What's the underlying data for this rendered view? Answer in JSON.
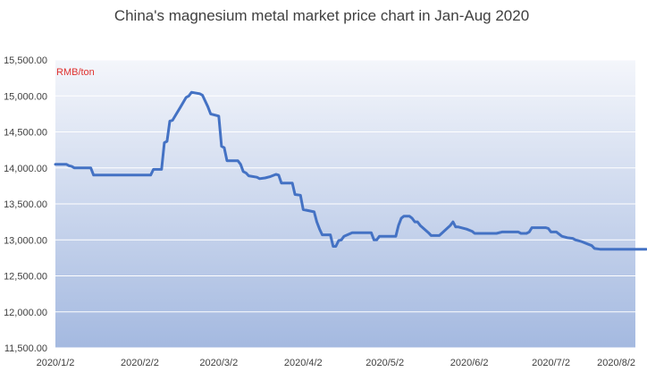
{
  "chart_data": {
    "type": "line",
    "title": "China's magnesium metal market price chart in Jan-Aug 2020",
    "unit_label": "RMB/ton",
    "xlabel": "",
    "ylabel": "",
    "ylim": [
      11500,
      15500
    ],
    "xlim": [
      "2020/1/2",
      "2020/8/2"
    ],
    "x_ticks": [
      "2020/1/2",
      "2020/2/2",
      "2020/3/2",
      "2020/4/2",
      "2020/5/2",
      "2020/6/2",
      "2020/7/2",
      "2020/8/2"
    ],
    "y_ticks": [
      11500,
      12000,
      12500,
      13000,
      13500,
      14000,
      14500,
      15000,
      15500
    ],
    "y_tick_labels": [
      "11,500.00",
      "12,000.00",
      "12,500.00",
      "13,000.00",
      "13,500.00",
      "14,000.00",
      "14,500.00",
      "15,000.00",
      "15,500.00"
    ],
    "grid": true,
    "legend": "none",
    "colors": {
      "line": "#4472c4",
      "unit_label": "#e0312f",
      "gradient_top": "#f4f6fb",
      "gradient_bottom": "#a4b9e0",
      "grid": "#ffffff",
      "text": "#404040"
    },
    "series": [
      {
        "values": [
          [
            "2020-01-02",
            14050
          ],
          [
            "2020-01-06",
            14050
          ],
          [
            "2020-01-07",
            14030
          ],
          [
            "2020-01-08",
            14020
          ],
          [
            "2020-01-09",
            14000
          ],
          [
            "2020-01-15",
            14000
          ],
          [
            "2020-01-16",
            13900
          ],
          [
            "2020-02-06",
            13900
          ],
          [
            "2020-02-07",
            13980
          ],
          [
            "2020-02-10",
            13980
          ],
          [
            "2020-02-11",
            14350
          ],
          [
            "2020-02-12",
            14370
          ],
          [
            "2020-02-13",
            14650
          ],
          [
            "2020-02-14",
            14660
          ],
          [
            "2020-02-17",
            14850
          ],
          [
            "2020-02-19",
            14980
          ],
          [
            "2020-02-20",
            15000
          ],
          [
            "2020-02-21",
            15050
          ],
          [
            "2020-02-24",
            15030
          ],
          [
            "2020-02-25",
            15010
          ],
          [
            "2020-02-27",
            14850
          ],
          [
            "2020-02-28",
            14750
          ],
          [
            "2020-03-02",
            14720
          ],
          [
            "2020-03-03",
            14300
          ],
          [
            "2020-03-04",
            14280
          ],
          [
            "2020-03-05",
            14100
          ],
          [
            "2020-03-09",
            14100
          ],
          [
            "2020-03-10",
            14050
          ],
          [
            "2020-03-11",
            13950
          ],
          [
            "2020-03-12",
            13930
          ],
          [
            "2020-03-13",
            13890
          ],
          [
            "2020-03-16",
            13870
          ],
          [
            "2020-03-17",
            13850
          ],
          [
            "2020-03-19",
            13860
          ],
          [
            "2020-03-21",
            13880
          ],
          [
            "2020-03-23",
            13910
          ],
          [
            "2020-03-24",
            13900
          ],
          [
            "2020-03-25",
            13790
          ],
          [
            "2020-03-29",
            13790
          ],
          [
            "2020-03-30",
            13630
          ],
          [
            "2020-04-01",
            13620
          ],
          [
            "2020-04-02",
            13420
          ],
          [
            "2020-04-06",
            13390
          ],
          [
            "2020-04-07",
            13250
          ],
          [
            "2020-04-08",
            13150
          ],
          [
            "2020-04-09",
            13070
          ],
          [
            "2020-04-12",
            13070
          ],
          [
            "2020-04-13",
            12910
          ],
          [
            "2020-04-14",
            12910
          ],
          [
            "2020-04-15",
            12990
          ],
          [
            "2020-04-16",
            13000
          ],
          [
            "2020-04-17",
            13050
          ],
          [
            "2020-04-20",
            13100
          ],
          [
            "2020-04-27",
            13100
          ],
          [
            "2020-04-28",
            13000
          ],
          [
            "2020-04-29",
            13000
          ],
          [
            "2020-04-30",
            13050
          ],
          [
            "2020-05-06",
            13050
          ],
          [
            "2020-05-07",
            13200
          ],
          [
            "2020-05-08",
            13300
          ],
          [
            "2020-05-09",
            13330
          ],
          [
            "2020-05-11",
            13330
          ],
          [
            "2020-05-12",
            13300
          ],
          [
            "2020-05-13",
            13250
          ],
          [
            "2020-05-14",
            13250
          ],
          [
            "2020-05-15",
            13200
          ],
          [
            "2020-05-18",
            13100
          ],
          [
            "2020-05-19",
            13060
          ],
          [
            "2020-05-22",
            13060
          ],
          [
            "2020-05-26",
            13200
          ],
          [
            "2020-05-27",
            13250
          ],
          [
            "2020-05-28",
            13180
          ],
          [
            "2020-05-29",
            13180
          ],
          [
            "2020-06-01",
            13150
          ],
          [
            "2020-06-03",
            13120
          ],
          [
            "2020-06-04",
            13090
          ],
          [
            "2020-06-12",
            13090
          ],
          [
            "2020-06-14",
            13110
          ],
          [
            "2020-06-20",
            13110
          ],
          [
            "2020-06-21",
            13090
          ],
          [
            "2020-06-23",
            13090
          ],
          [
            "2020-06-24",
            13110
          ],
          [
            "2020-06-25",
            13170
          ],
          [
            "2020-06-30",
            13170
          ],
          [
            "2020-07-01",
            13160
          ],
          [
            "2020-07-02",
            13110
          ],
          [
            "2020-07-04",
            13110
          ],
          [
            "2020-07-05",
            13080
          ],
          [
            "2020-07-06",
            13050
          ],
          [
            "2020-07-08",
            13030
          ],
          [
            "2020-07-10",
            13020
          ],
          [
            "2020-07-11",
            13000
          ],
          [
            "2020-07-13",
            12980
          ],
          [
            "2020-07-15",
            12950
          ],
          [
            "2020-07-17",
            12920
          ],
          [
            "2020-07-18",
            12880
          ],
          [
            "2020-07-20",
            12870
          ],
          [
            "2020-08-06",
            12870
          ]
        ]
      }
    ]
  }
}
